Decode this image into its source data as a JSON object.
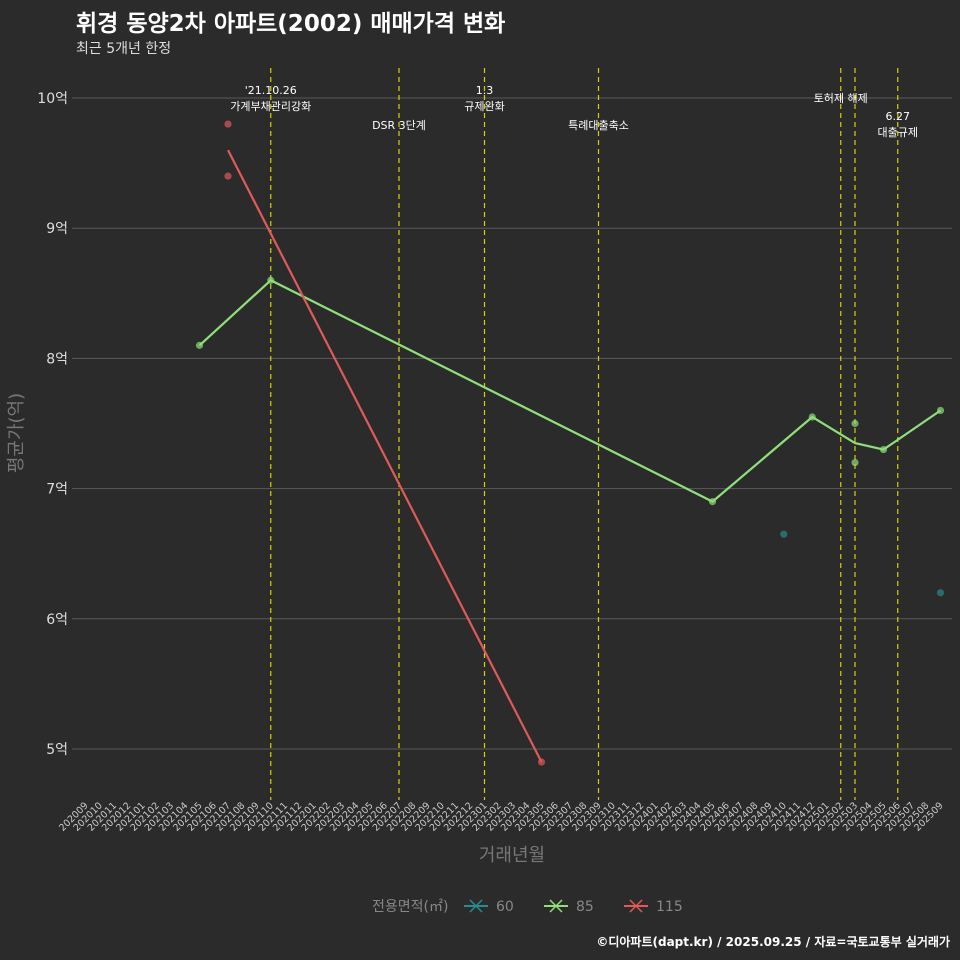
{
  "title": "휘경 동양2차 아파트(2002) 매매가격 변화",
  "subtitle": "최근 5개년 한정",
  "caption": "©디아파트(dapt.kr) / 2025.09.25 / 자료=국토교통부 실거래가",
  "colors": {
    "background": "#2b2b2b",
    "grid": "#5a5a5a",
    "vline": "#d4d400",
    "s60": "#2a8c8c",
    "s85": "#8fe07a",
    "s115": "#e05a5a"
  },
  "chart_data": {
    "type": "line",
    "xlabel": "거래년월",
    "ylabel": "평균가(억)",
    "ylim": [
      4.7,
      10.3
    ],
    "yticks": [
      {
        "v": 5,
        "label": "5억"
      },
      {
        "v": 6,
        "label": "6억"
      },
      {
        "v": 7,
        "label": "7억"
      },
      {
        "v": 8,
        "label": "8억"
      },
      {
        "v": 9,
        "label": "9억"
      },
      {
        "v": 10,
        "label": "10억"
      }
    ],
    "x_categories": [
      "202009",
      "202010",
      "202011",
      "202012",
      "202101",
      "202102",
      "202103",
      "202104",
      "202105",
      "202106",
      "202107",
      "202108",
      "202109",
      "202110",
      "202111",
      "202112",
      "202201",
      "202202",
      "202203",
      "202204",
      "202205",
      "202206",
      "202207",
      "202208",
      "202209",
      "202210",
      "202211",
      "202212",
      "202301",
      "202302",
      "202303",
      "202304",
      "202305",
      "202306",
      "202307",
      "202308",
      "202309",
      "202310",
      "202311",
      "202312",
      "202401",
      "202402",
      "202403",
      "202404",
      "202405",
      "202406",
      "202407",
      "202408",
      "202409",
      "202410",
      "202411",
      "202412",
      "202501",
      "202502",
      "202503",
      "202504",
      "202505",
      "202506",
      "202507",
      "202508",
      "202509"
    ],
    "legend": {
      "title": "전용면적(㎡)",
      "position": "bottom"
    },
    "series": [
      {
        "name": "60",
        "color_key": "s60",
        "points": [],
        "scatter": [
          [
            "202410",
            6.65
          ],
          [
            "202509",
            6.2
          ]
        ]
      },
      {
        "name": "85",
        "color_key": "s85",
        "points": [
          [
            "202105",
            8.1
          ],
          [
            "202110",
            8.6
          ],
          [
            "202405",
            6.9
          ],
          [
            "202412",
            7.55
          ],
          [
            "202503",
            7.35
          ],
          [
            "202505",
            7.3
          ],
          [
            "202509",
            7.6
          ]
        ],
        "scatter": [
          [
            "202105",
            8.1
          ],
          [
            "202110",
            8.6
          ],
          [
            "202405",
            6.9
          ],
          [
            "202412",
            7.55
          ],
          [
            "202503",
            7.5
          ],
          [
            "202503",
            7.2
          ],
          [
            "202505",
            7.3
          ],
          [
            "202509",
            7.6
          ]
        ]
      },
      {
        "name": "115",
        "color_key": "s115",
        "points": [
          [
            "202107",
            9.6
          ],
          [
            "202305",
            4.9
          ]
        ],
        "scatter": [
          [
            "202107",
            9.8
          ],
          [
            "202107",
            9.4
          ],
          [
            "202305",
            4.9
          ]
        ]
      }
    ],
    "events": [
      {
        "x": "202110",
        "lines": [
          "'21.10.26",
          "가계부채관리강화"
        ]
      },
      {
        "x": "202207",
        "lines": [
          "DSR 3단계"
        ]
      },
      {
        "x": "202301",
        "lines": [
          "1.3",
          "규제완화"
        ]
      },
      {
        "x": "202309",
        "lines": [
          "특례대출축소"
        ]
      },
      {
        "x": "202502",
        "lines": [
          "토허제 해제"
        ]
      },
      {
        "x": "202503",
        "lines": []
      },
      {
        "x": "202506",
        "lines": [
          "6.27",
          "대출규제"
        ]
      }
    ]
  }
}
